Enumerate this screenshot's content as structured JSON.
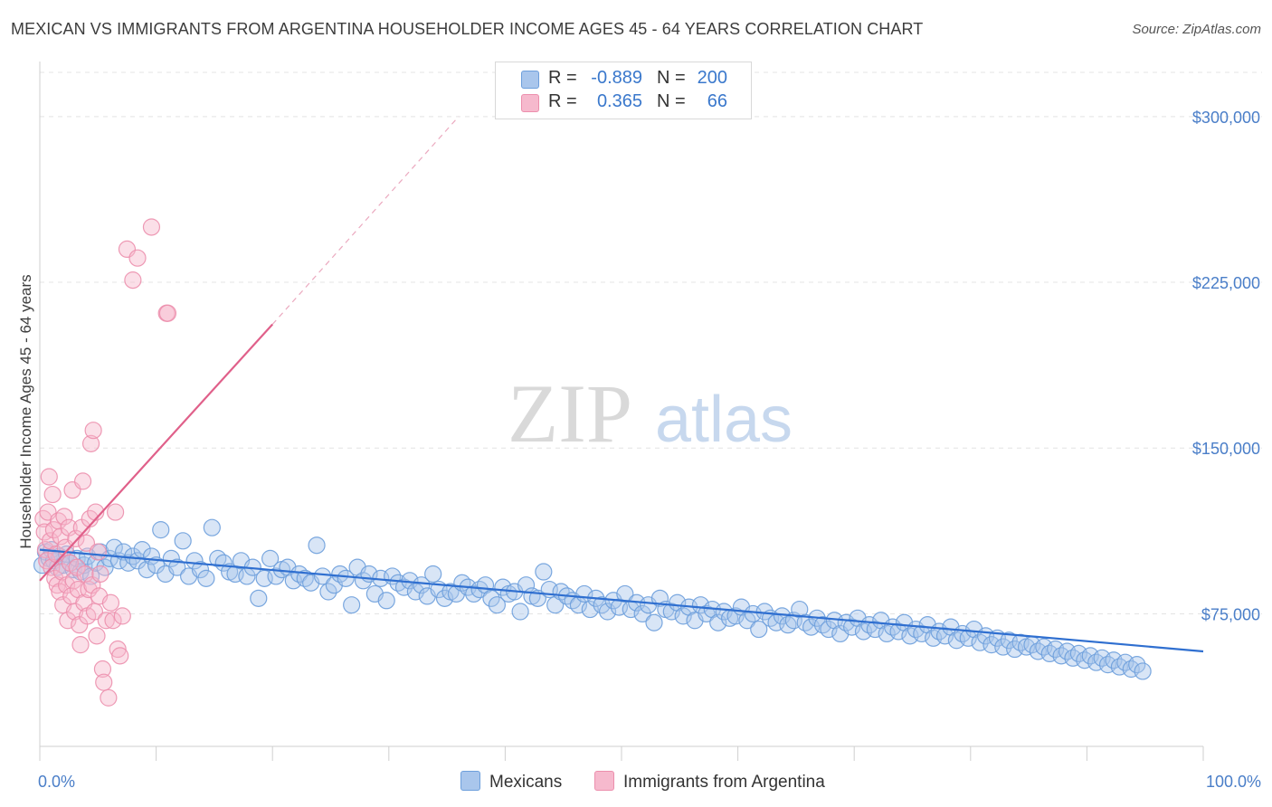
{
  "header": {
    "title": "MEXICAN VS IMMIGRANTS FROM ARGENTINA HOUSEHOLDER INCOME AGES 45 - 64 YEARS CORRELATION CHART",
    "source": "Source: ZipAtlas.com"
  },
  "watermark": {
    "zip": "ZIP",
    "atlas": "atlas"
  },
  "stats_legend": {
    "rows": [
      {
        "r_label": "R =",
        "r_value": "-0.889",
        "n_label": "N =",
        "n_value": "200",
        "color": "#a9c6ec"
      },
      {
        "r_label": "R =",
        "r_value": "0.365",
        "n_label": "N =",
        "n_value": "66",
        "color": "#f6b9cd"
      }
    ]
  },
  "colors": {
    "mexicans_fill": "#a9c6ec",
    "mexicans_stroke": "#6d9fdc",
    "mexicans_line": "#2f6fd0",
    "argentina_fill": "#f6b9cd",
    "argentina_stroke": "#ec8fad",
    "argentina_line": "#e0608a",
    "tick_label": "#4a7ec8",
    "grid": "#e4e4e4"
  },
  "chart_data": {
    "type": "scatter",
    "title": "MEXICAN VS IMMIGRANTS FROM ARGENTINA HOUSEHOLDER INCOME AGES 45 - 64 YEARS CORRELATION CHART",
    "xlabel": "",
    "ylabel": "Householder Income Ages 45 - 64 years",
    "xlim": [
      0,
      100
    ],
    "ylim": [
      15000,
      320000
    ],
    "x_tick_labels": [
      "0.0%",
      "100.0%"
    ],
    "y_ticks": [
      75000,
      150000,
      225000,
      300000
    ],
    "y_tick_labels": [
      "$75,000",
      "$150,000",
      "$225,000",
      "$300,000"
    ],
    "grid": true,
    "legend": "bottom-center",
    "series": [
      {
        "name": "Mexicans",
        "r": -0.889,
        "n": 200,
        "trend": {
          "x": [
            0,
            100
          ],
          "y": [
            104000,
            58000
          ]
        },
        "points": [
          [
            0.2,
            97000
          ],
          [
            0.5,
            103000
          ],
          [
            0.8,
            100000
          ],
          [
            1.0,
            104000
          ],
          [
            1.2,
            99000
          ],
          [
            1.5,
            96000
          ],
          [
            1.7,
            101000
          ],
          [
            2.0,
            97000
          ],
          [
            2.3,
            102000
          ],
          [
            2.6,
            98000
          ],
          [
            2.9,
            95000
          ],
          [
            3.2,
            100000
          ],
          [
            3.5,
            94000
          ],
          [
            3.8,
            97000
          ],
          [
            4.1,
            101000
          ],
          [
            4.4,
            92000
          ],
          [
            4.8,
            98000
          ],
          [
            5.2,
            103000
          ],
          [
            5.6,
            96000
          ],
          [
            6.0,
            100000
          ],
          [
            6.4,
            105000
          ],
          [
            6.8,
            99000
          ],
          [
            7.2,
            103000
          ],
          [
            7.6,
            98000
          ],
          [
            8.0,
            101000
          ],
          [
            8.4,
            99000
          ],
          [
            8.8,
            104000
          ],
          [
            9.2,
            95000
          ],
          [
            9.6,
            101000
          ],
          [
            10.0,
            97000
          ],
          [
            10.4,
            113000
          ],
          [
            10.8,
            93000
          ],
          [
            11.3,
            100000
          ],
          [
            11.8,
            96000
          ],
          [
            12.3,
            108000
          ],
          [
            12.8,
            92000
          ],
          [
            13.3,
            99000
          ],
          [
            13.8,
            95000
          ],
          [
            14.3,
            91000
          ],
          [
            14.8,
            114000
          ],
          [
            15.3,
            100000
          ],
          [
            15.8,
            98000
          ],
          [
            16.3,
            94000
          ],
          [
            16.8,
            93000
          ],
          [
            17.3,
            99000
          ],
          [
            17.8,
            92000
          ],
          [
            18.3,
            96000
          ],
          [
            18.8,
            82000
          ],
          [
            19.3,
            91000
          ],
          [
            19.8,
            100000
          ],
          [
            20.3,
            92000
          ],
          [
            20.8,
            95000
          ],
          [
            21.3,
            96000
          ],
          [
            21.8,
            90000
          ],
          [
            22.3,
            93000
          ],
          [
            22.8,
            91000
          ],
          [
            23.3,
            89000
          ],
          [
            23.8,
            106000
          ],
          [
            24.3,
            92000
          ],
          [
            24.8,
            85000
          ],
          [
            25.3,
            88000
          ],
          [
            25.8,
            93000
          ],
          [
            26.3,
            91000
          ],
          [
            26.8,
            79000
          ],
          [
            27.3,
            96000
          ],
          [
            27.8,
            90000
          ],
          [
            28.3,
            93000
          ],
          [
            28.8,
            84000
          ],
          [
            29.3,
            91000
          ],
          [
            29.8,
            81000
          ],
          [
            30.3,
            92000
          ],
          [
            30.8,
            89000
          ],
          [
            31.3,
            87000
          ],
          [
            31.8,
            90000
          ],
          [
            32.3,
            85000
          ],
          [
            32.8,
            88000
          ],
          [
            33.3,
            83000
          ],
          [
            33.8,
            93000
          ],
          [
            34.3,
            86000
          ],
          [
            34.8,
            82000
          ],
          [
            35.3,
            85000
          ],
          [
            35.8,
            84000
          ],
          [
            36.3,
            89000
          ],
          [
            36.8,
            87000
          ],
          [
            37.3,
            84000
          ],
          [
            37.8,
            86000
          ],
          [
            38.3,
            88000
          ],
          [
            38.8,
            82000
          ],
          [
            39.3,
            79000
          ],
          [
            39.8,
            87000
          ],
          [
            40.3,
            84000
          ],
          [
            40.8,
            85000
          ],
          [
            41.3,
            76000
          ],
          [
            41.8,
            88000
          ],
          [
            42.3,
            83000
          ],
          [
            42.8,
            82000
          ],
          [
            43.3,
            94000
          ],
          [
            43.8,
            86000
          ],
          [
            44.3,
            79000
          ],
          [
            44.8,
            85000
          ],
          [
            45.3,
            83000
          ],
          [
            45.8,
            81000
          ],
          [
            46.3,
            79000
          ],
          [
            46.8,
            84000
          ],
          [
            47.3,
            77000
          ],
          [
            47.8,
            82000
          ],
          [
            48.3,
            79000
          ],
          [
            48.8,
            76000
          ],
          [
            49.3,
            81000
          ],
          [
            49.8,
            78000
          ],
          [
            50.3,
            84000
          ],
          [
            50.8,
            77000
          ],
          [
            51.3,
            80000
          ],
          [
            51.8,
            75000
          ],
          [
            52.3,
            79000
          ],
          [
            52.8,
            71000
          ],
          [
            53.3,
            82000
          ],
          [
            53.8,
            77000
          ],
          [
            54.3,
            76000
          ],
          [
            54.8,
            80000
          ],
          [
            55.3,
            74000
          ],
          [
            55.8,
            78000
          ],
          [
            56.3,
            72000
          ],
          [
            56.8,
            79000
          ],
          [
            57.3,
            75000
          ],
          [
            57.8,
            77000
          ],
          [
            58.3,
            71000
          ],
          [
            58.8,
            76000
          ],
          [
            59.3,
            73000
          ],
          [
            59.8,
            74000
          ],
          [
            60.3,
            78000
          ],
          [
            60.8,
            72000
          ],
          [
            61.3,
            75000
          ],
          [
            61.8,
            68000
          ],
          [
            62.3,
            76000
          ],
          [
            62.8,
            73000
          ],
          [
            63.3,
            71000
          ],
          [
            63.8,
            74000
          ],
          [
            64.3,
            70000
          ],
          [
            64.8,
            72000
          ],
          [
            65.3,
            77000
          ],
          [
            65.8,
            71000
          ],
          [
            66.3,
            69000
          ],
          [
            66.8,
            73000
          ],
          [
            67.3,
            70000
          ],
          [
            67.8,
            68000
          ],
          [
            68.3,
            72000
          ],
          [
            68.8,
            66000
          ],
          [
            69.3,
            71000
          ],
          [
            69.8,
            69000
          ],
          [
            70.3,
            73000
          ],
          [
            70.8,
            67000
          ],
          [
            71.3,
            70000
          ],
          [
            71.8,
            68000
          ],
          [
            72.3,
            72000
          ],
          [
            72.8,
            66000
          ],
          [
            73.3,
            69000
          ],
          [
            73.8,
            67000
          ],
          [
            74.3,
            71000
          ],
          [
            74.8,
            65000
          ],
          [
            75.3,
            68000
          ],
          [
            75.8,
            66000
          ],
          [
            76.3,
            70000
          ],
          [
            76.8,
            64000
          ],
          [
            77.3,
            67000
          ],
          [
            77.8,
            65000
          ],
          [
            78.3,
            69000
          ],
          [
            78.8,
            63000
          ],
          [
            79.3,
            66000
          ],
          [
            79.8,
            64000
          ],
          [
            80.3,
            68000
          ],
          [
            80.8,
            62000
          ],
          [
            81.3,
            65000
          ],
          [
            81.8,
            61000
          ],
          [
            82.3,
            64000
          ],
          [
            82.8,
            60000
          ],
          [
            83.3,
            63000
          ],
          [
            83.8,
            59000
          ],
          [
            84.3,
            62000
          ],
          [
            84.8,
            60000
          ],
          [
            85.3,
            61000
          ],
          [
            85.8,
            58000
          ],
          [
            86.3,
            60000
          ],
          [
            86.8,
            57000
          ],
          [
            87.3,
            59000
          ],
          [
            87.8,
            56000
          ],
          [
            88.3,
            58000
          ],
          [
            88.8,
            55000
          ],
          [
            89.3,
            57000
          ],
          [
            89.8,
            54000
          ],
          [
            90.3,
            56000
          ],
          [
            90.8,
            53000
          ],
          [
            91.3,
            55000
          ],
          [
            91.8,
            52000
          ],
          [
            92.3,
            54000
          ],
          [
            92.8,
            51000
          ],
          [
            93.3,
            53000
          ],
          [
            93.8,
            50000
          ],
          [
            94.3,
            52000
          ],
          [
            94.8,
            49000
          ]
        ]
      },
      {
        "name": "Immigrants from Argentina",
        "r": 0.365,
        "n": 66,
        "trend": {
          "x": [
            0,
            20
          ],
          "y": [
            90000,
            206000
          ]
        },
        "trend_dashed": {
          "x": [
            20,
            36
          ],
          "y": [
            206000,
            300000
          ]
        },
        "points": [
          [
            0.3,
            118000
          ],
          [
            0.4,
            112000
          ],
          [
            0.5,
            104000
          ],
          [
            0.6,
            99000
          ],
          [
            0.7,
            121000
          ],
          [
            0.8,
            137000
          ],
          [
            0.9,
            108000
          ],
          [
            1.0,
            96000
          ],
          [
            1.1,
            129000
          ],
          [
            1.2,
            113000
          ],
          [
            1.3,
            91000
          ],
          [
            1.4,
            102000
          ],
          [
            1.5,
            88000
          ],
          [
            1.6,
            117000
          ],
          [
            1.7,
            85000
          ],
          [
            1.8,
            110000
          ],
          [
            1.9,
            94000
          ],
          [
            2.0,
            79000
          ],
          [
            2.1,
            119000
          ],
          [
            2.2,
            105000
          ],
          [
            2.3,
            88000
          ],
          [
            2.4,
            72000
          ],
          [
            2.5,
            114000
          ],
          [
            2.6,
            98000
          ],
          [
            2.7,
            83000
          ],
          [
            2.8,
            131000
          ],
          [
            2.9,
            90000
          ],
          [
            3.0,
            76000
          ],
          [
            3.1,
            109000
          ],
          [
            3.2,
            96000
          ],
          [
            3.3,
            86000
          ],
          [
            3.4,
            70000
          ],
          [
            3.5,
            61000
          ],
          [
            3.6,
            114000
          ],
          [
            3.7,
            135000
          ],
          [
            3.8,
            80000
          ],
          [
            3.9,
            93000
          ],
          [
            4.0,
            107000
          ],
          [
            4.1,
            74000
          ],
          [
            4.2,
            86000
          ],
          [
            4.3,
            118000
          ],
          [
            4.4,
            152000
          ],
          [
            4.5,
            88000
          ],
          [
            4.6,
            158000
          ],
          [
            4.7,
            76000
          ],
          [
            4.8,
            121000
          ],
          [
            4.9,
            65000
          ],
          [
            5.0,
            103000
          ],
          [
            5.1,
            83000
          ],
          [
            5.2,
            93000
          ],
          [
            5.4,
            50000
          ],
          [
            5.5,
            44000
          ],
          [
            5.7,
            72000
          ],
          [
            5.9,
            37000
          ],
          [
            6.1,
            80000
          ],
          [
            6.3,
            72000
          ],
          [
            6.5,
            121000
          ],
          [
            6.7,
            59000
          ],
          [
            6.9,
            56000
          ],
          [
            7.1,
            74000
          ],
          [
            7.5,
            240000
          ],
          [
            8.0,
            226000
          ],
          [
            8.4,
            236000
          ],
          [
            9.6,
            250000
          ],
          [
            10.9,
            211000
          ],
          [
            11.0,
            211000
          ]
        ]
      }
    ]
  },
  "bottom_legend": {
    "items": [
      {
        "label": "Mexicans",
        "color": "#a9c6ec"
      },
      {
        "label": "Immigrants from Argentina",
        "color": "#f6b9cd"
      }
    ]
  }
}
